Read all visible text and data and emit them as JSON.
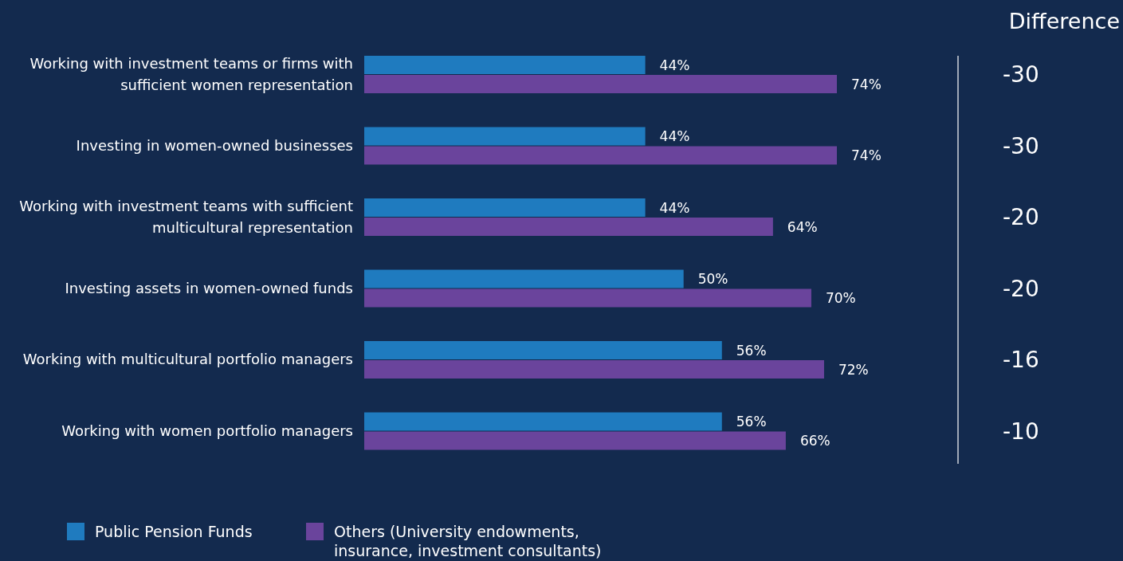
{
  "chart_data": {
    "type": "bar",
    "orientation": "horizontal",
    "categories": [
      "Working with investment teams or firms with sufficient women representation",
      "Investing in women-owned businesses",
      "Working with investment teams with sufficient multicultural representation",
      "Investing assets in women-owned funds",
      "Working with multicultural portfolio managers",
      "Working with women portfolio managers"
    ],
    "series": [
      {
        "name": "Public Pension Funds",
        "color": "#1f7bbf",
        "values": [
          44,
          44,
          44,
          50,
          56,
          56
        ],
        "value_labels": [
          "44%",
          "44%",
          "44%",
          "50%",
          "56%",
          "56%"
        ]
      },
      {
        "name": "Others (University endowments, insurance, investment consultants)",
        "color": "#6a449c",
        "values": [
          74,
          74,
          64,
          70,
          72,
          66
        ],
        "value_labels": [
          "74%",
          "74%",
          "64%",
          "70%",
          "72%",
          "66%"
        ]
      }
    ],
    "annotations": [
      "Difference",
      "-30",
      "-30",
      "-20",
      "-20",
      "-16",
      "-10"
    ],
    "legend": "bottom"
  }
}
